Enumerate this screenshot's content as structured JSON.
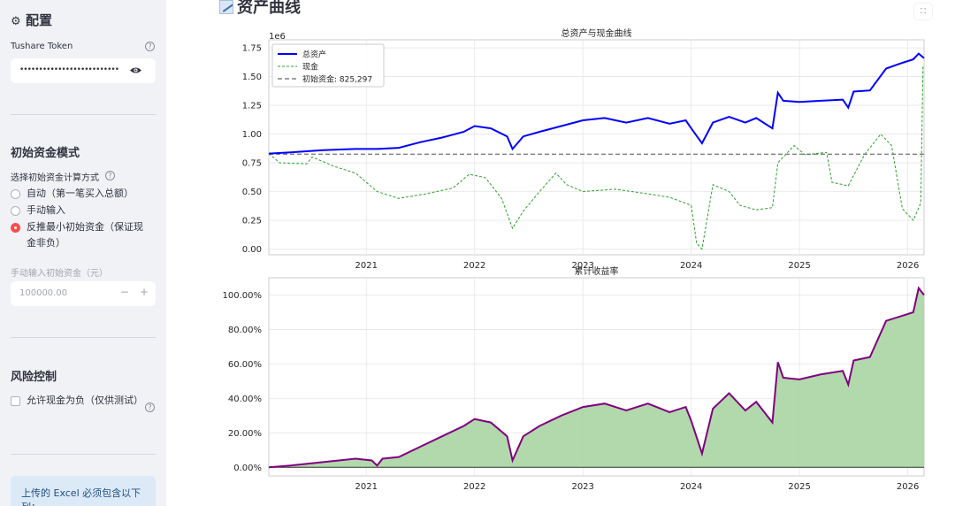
{
  "sidebar": {
    "config_title": "配置",
    "token_label": "Tushare Token",
    "token_value": "••••••••••••••••••••••••••",
    "mode_heading": "初始资金模式",
    "mode_prompt": "选择初始资金计算方式",
    "mode_options": [
      {
        "label": "自动（第一笔买入总额）",
        "selected": false
      },
      {
        "label": "手动输入",
        "selected": false
      },
      {
        "label": "反推最小初始资金（保证现金非负）",
        "selected": true
      }
    ],
    "manual_label": "手动输入初始资金（元）",
    "manual_value": "100000.00",
    "minus": "−",
    "plus": "+",
    "risk_heading": "风险控制",
    "allow_negative_label": "允许现金为负（仅供测试）",
    "allow_negative_checked": false,
    "info_text": "上传的 Excel 必须包含以下列："
  },
  "main": {
    "title": "资产曲线",
    "fullscreen_icon": "fullscreen-icon"
  },
  "colors": {
    "accent": "#ff4b4b",
    "asset_line": "#0000ff",
    "cash_line": "#2ca02c",
    "baseline": "#808080",
    "return_line": "#800080",
    "return_fill": "#a8d5a2"
  },
  "chart_data": [
    {
      "type": "line",
      "title": "总资产与现金曲线",
      "y_offset_label": "1e6",
      "x_ticks": [
        "2021",
        "2022",
        "2023",
        "2024",
        "2025",
        "2026"
      ],
      "y_ticks": [
        "0.00",
        "0.25",
        "0.50",
        "0.75",
        "1.00",
        "1.25",
        "1.50",
        "1.75"
      ],
      "xlim": [
        2020.1,
        2026.15
      ],
      "ylim": [
        -0.05,
        1.82
      ],
      "grid": true,
      "legend_position": "top-left",
      "series": [
        {
          "name": "总资产",
          "style": "solid",
          "points": [
            [
              2020.1,
              0.83
            ],
            [
              2020.3,
              0.84
            ],
            [
              2020.6,
              0.86
            ],
            [
              2020.9,
              0.87
            ],
            [
              2021.1,
              0.87
            ],
            [
              2021.3,
              0.88
            ],
            [
              2021.5,
              0.93
            ],
            [
              2021.7,
              0.97
            ],
            [
              2021.9,
              1.02
            ],
            [
              2022.0,
              1.07
            ],
            [
              2022.15,
              1.05
            ],
            [
              2022.3,
              0.98
            ],
            [
              2022.35,
              0.87
            ],
            [
              2022.45,
              0.98
            ],
            [
              2022.6,
              1.02
            ],
            [
              2022.8,
              1.07
            ],
            [
              2023.0,
              1.12
            ],
            [
              2023.2,
              1.14
            ],
            [
              2023.4,
              1.1
            ],
            [
              2023.6,
              1.14
            ],
            [
              2023.8,
              1.09
            ],
            [
              2023.95,
              1.12
            ],
            [
              2024.0,
              1.05
            ],
            [
              2024.1,
              0.92
            ],
            [
              2024.2,
              1.1
            ],
            [
              2024.35,
              1.15
            ],
            [
              2024.5,
              1.1
            ],
            [
              2024.6,
              1.14
            ],
            [
              2024.75,
              1.05
            ],
            [
              2024.8,
              1.36
            ],
            [
              2024.85,
              1.29
            ],
            [
              2025.0,
              1.28
            ],
            [
              2025.2,
              1.29
            ],
            [
              2025.4,
              1.3
            ],
            [
              2025.45,
              1.23
            ],
            [
              2025.5,
              1.37
            ],
            [
              2025.65,
              1.38
            ],
            [
              2025.8,
              1.57
            ],
            [
              2025.95,
              1.62
            ],
            [
              2026.05,
              1.65
            ],
            [
              2026.1,
              1.7
            ],
            [
              2026.15,
              1.66
            ]
          ]
        },
        {
          "name": "现金",
          "style": "dashed",
          "points": [
            [
              2020.1,
              0.83
            ],
            [
              2020.2,
              0.75
            ],
            [
              2020.45,
              0.74
            ],
            [
              2020.5,
              0.8
            ],
            [
              2020.7,
              0.72
            ],
            [
              2020.9,
              0.66
            ],
            [
              2021.1,
              0.5
            ],
            [
              2021.3,
              0.44
            ],
            [
              2021.55,
              0.48
            ],
            [
              2021.8,
              0.53
            ],
            [
              2021.95,
              0.65
            ],
            [
              2022.1,
              0.62
            ],
            [
              2022.25,
              0.44
            ],
            [
              2022.35,
              0.18
            ],
            [
              2022.45,
              0.33
            ],
            [
              2022.6,
              0.5
            ],
            [
              2022.75,
              0.66
            ],
            [
              2022.85,
              0.56
            ],
            [
              2023.0,
              0.5
            ],
            [
              2023.3,
              0.52
            ],
            [
              2023.6,
              0.48
            ],
            [
              2023.8,
              0.45
            ],
            [
              2024.0,
              0.38
            ],
            [
              2024.05,
              0.05
            ],
            [
              2024.1,
              0.0
            ],
            [
              2024.2,
              0.56
            ],
            [
              2024.35,
              0.5
            ],
            [
              2024.45,
              0.38
            ],
            [
              2024.6,
              0.34
            ],
            [
              2024.75,
              0.36
            ],
            [
              2024.8,
              0.75
            ],
            [
              2024.95,
              0.9
            ],
            [
              2025.05,
              0.82
            ],
            [
              2025.25,
              0.84
            ],
            [
              2025.3,
              0.58
            ],
            [
              2025.45,
              0.55
            ],
            [
              2025.6,
              0.82
            ],
            [
              2025.75,
              1.0
            ],
            [
              2025.85,
              0.9
            ],
            [
              2025.95,
              0.35
            ],
            [
              2026.05,
              0.25
            ],
            [
              2026.12,
              0.4
            ],
            [
              2026.14,
              1.6
            ]
          ]
        },
        {
          "name": "初始资金: 825,297",
          "style": "dashed",
          "points": [
            [
              2020.1,
              0.825297
            ],
            [
              2026.15,
              0.825297
            ]
          ]
        }
      ]
    },
    {
      "type": "area",
      "title": "累计收益率",
      "x_ticks": [
        "2021",
        "2022",
        "2023",
        "2024",
        "2025",
        "2026"
      ],
      "y_ticks": [
        "0.00%",
        "20.00%",
        "40.00%",
        "60.00%",
        "80.00%",
        "100.00%"
      ],
      "xlim": [
        2020.1,
        2026.15
      ],
      "ylim": [
        -5,
        110
      ],
      "grid": true,
      "series": [
        {
          "name": "",
          "points": [
            [
              2020.1,
              0
            ],
            [
              2020.3,
              1
            ],
            [
              2020.6,
              3
            ],
            [
              2020.9,
              5
            ],
            [
              2021.05,
              4
            ],
            [
              2021.1,
              1
            ],
            [
              2021.15,
              5
            ],
            [
              2021.3,
              6
            ],
            [
              2021.5,
              12
            ],
            [
              2021.7,
              18
            ],
            [
              2021.9,
              24
            ],
            [
              2022.0,
              28
            ],
            [
              2022.15,
              26
            ],
            [
              2022.3,
              18
            ],
            [
              2022.35,
              4
            ],
            [
              2022.45,
              18
            ],
            [
              2022.6,
              24
            ],
            [
              2022.8,
              30
            ],
            [
              2023.0,
              35
            ],
            [
              2023.2,
              37
            ],
            [
              2023.4,
              33
            ],
            [
              2023.6,
              37
            ],
            [
              2023.8,
              32
            ],
            [
              2023.95,
              35
            ],
            [
              2024.0,
              27
            ],
            [
              2024.1,
              8
            ],
            [
              2024.2,
              34
            ],
            [
              2024.35,
              43
            ],
            [
              2024.5,
              33
            ],
            [
              2024.6,
              38
            ],
            [
              2024.75,
              26
            ],
            [
              2024.8,
              61
            ],
            [
              2024.85,
              52
            ],
            [
              2025.0,
              51
            ],
            [
              2025.2,
              54
            ],
            [
              2025.4,
              56
            ],
            [
              2025.45,
              48
            ],
            [
              2025.5,
              62
            ],
            [
              2025.65,
              64
            ],
            [
              2025.8,
              85
            ],
            [
              2025.95,
              88
            ],
            [
              2026.05,
              90
            ],
            [
              2026.1,
              104
            ],
            [
              2026.15,
              100
            ]
          ]
        }
      ]
    }
  ]
}
